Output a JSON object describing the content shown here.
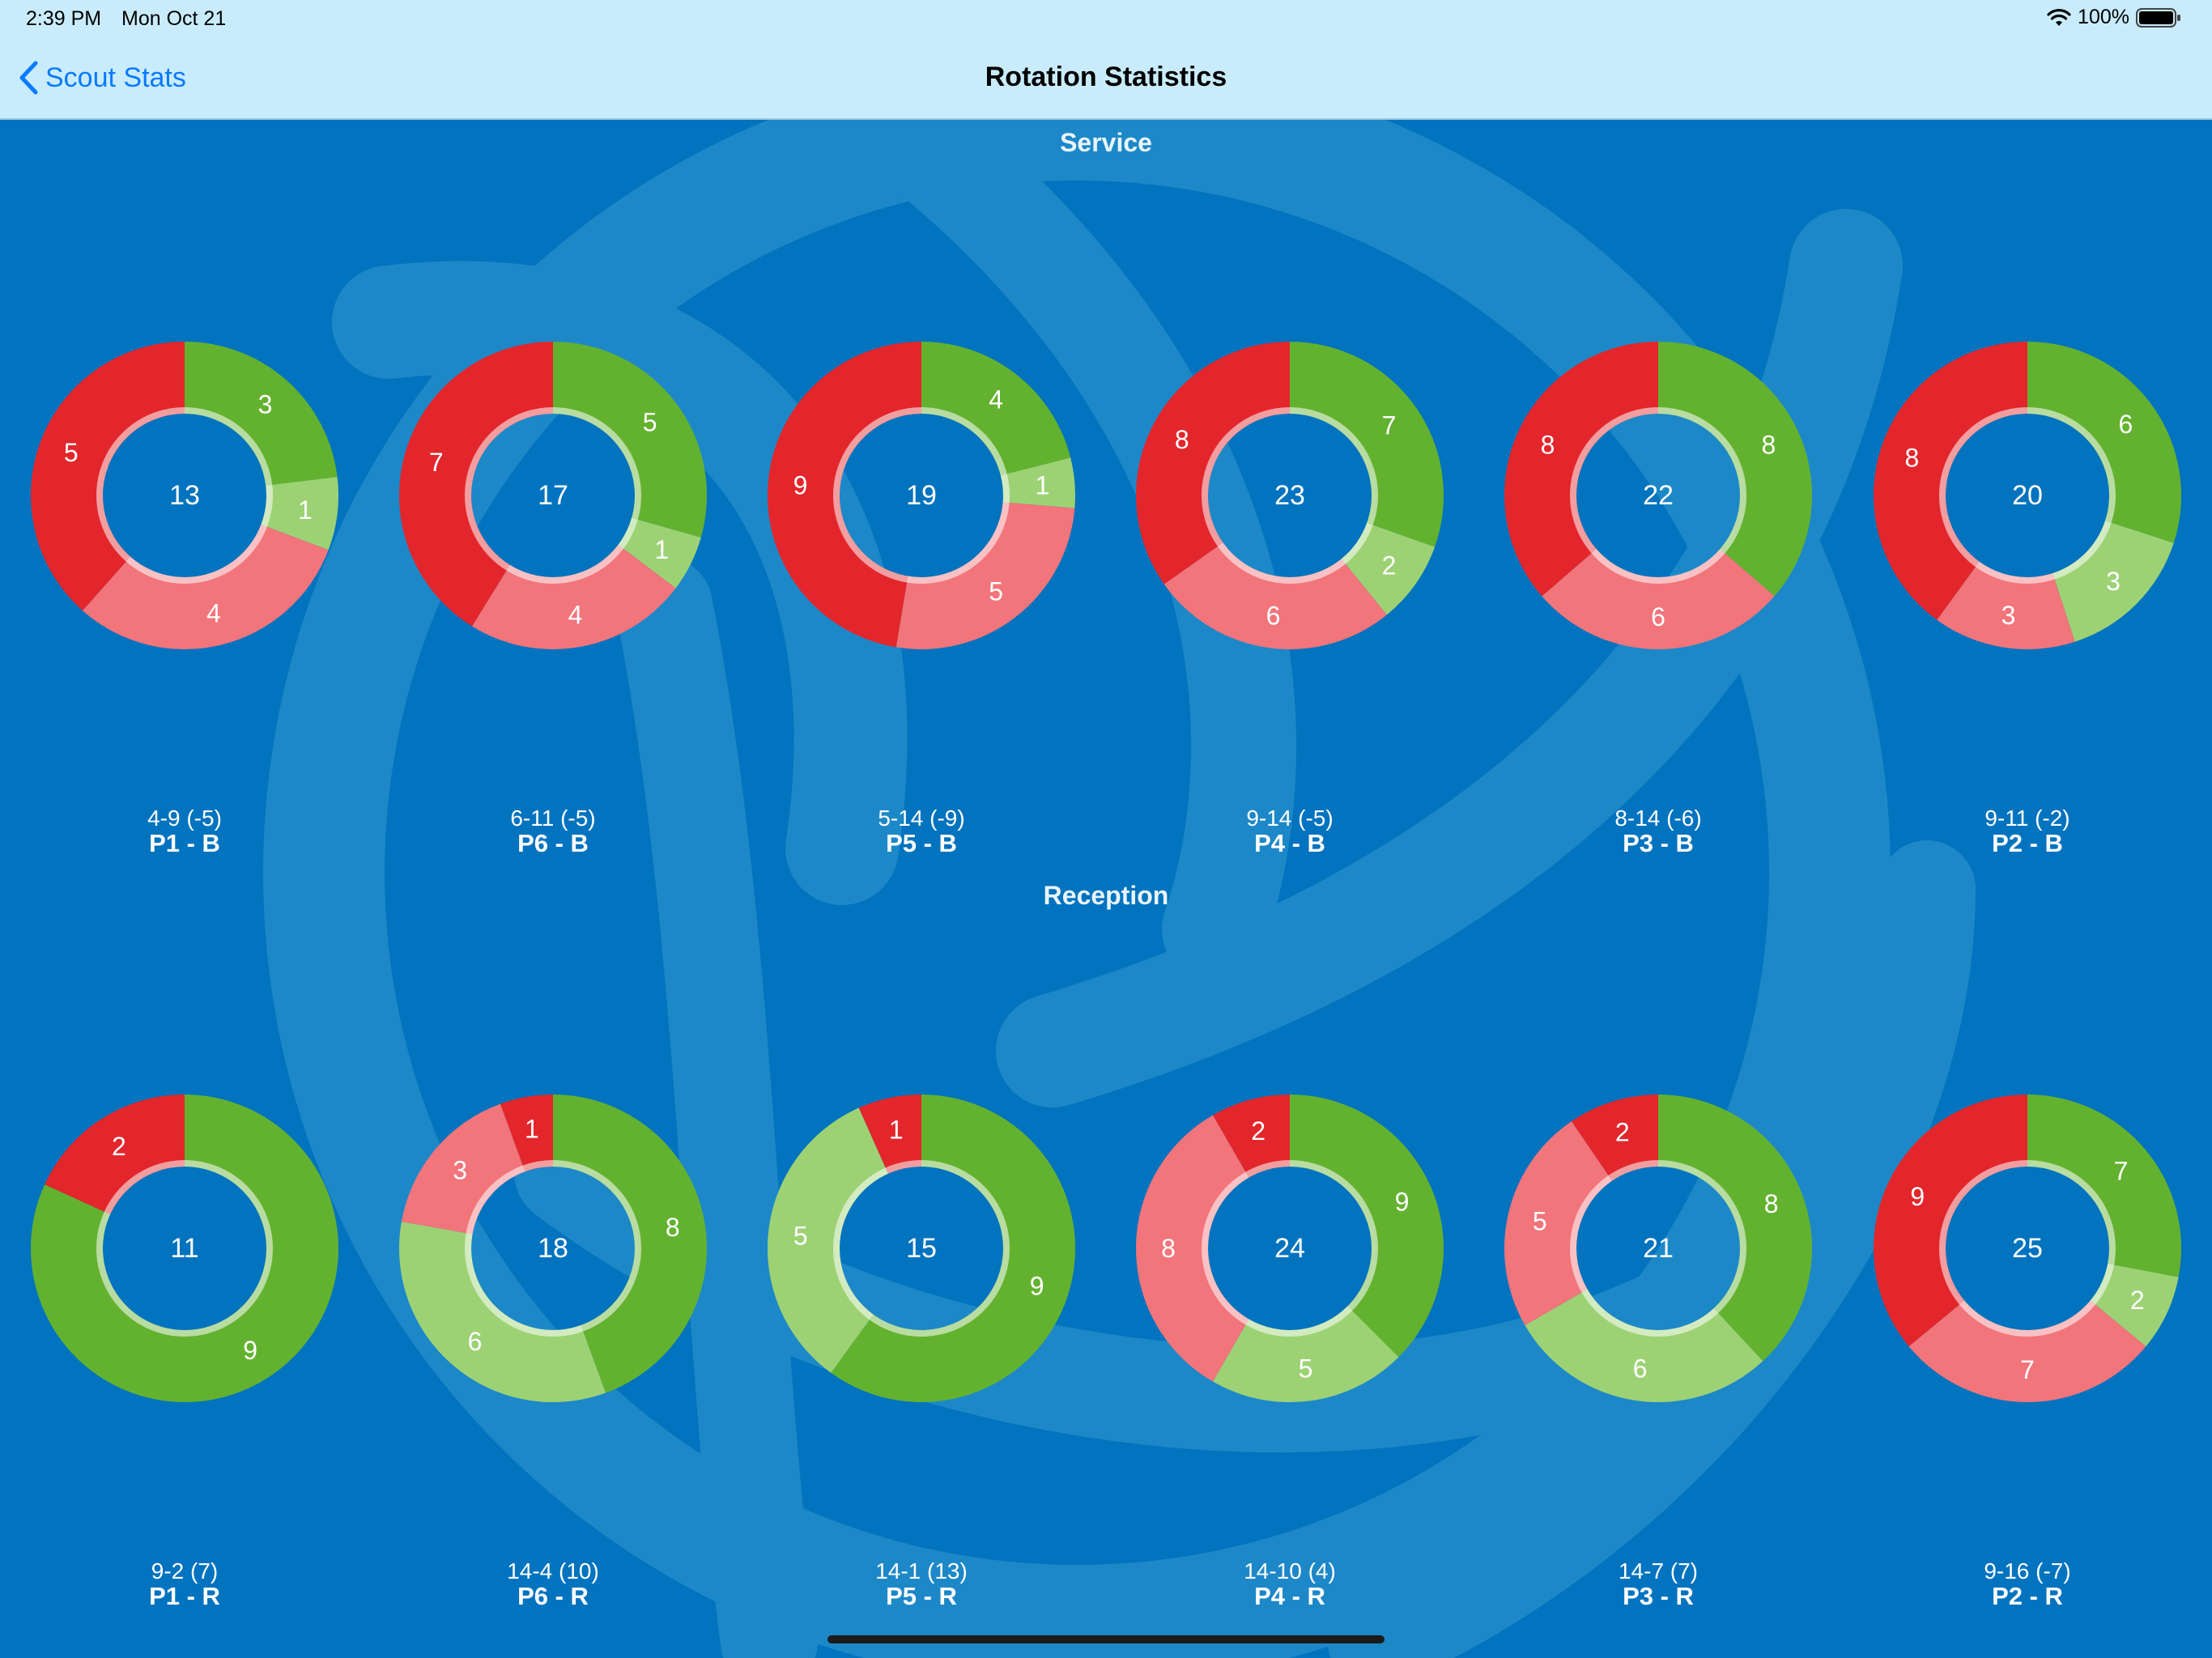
{
  "status_bar": {
    "time": "2:39 PM",
    "date": "Mon Oct 21",
    "battery": "100%"
  },
  "nav": {
    "back_label": "Scout Stats",
    "title": "Rotation Statistics"
  },
  "sections": [
    {
      "title": "Service",
      "rotations": [
        {
          "total": "13",
          "score": "4-9 (-5)",
          "position": "P1 - B",
          "slices": [
            {
              "value": 3,
              "color": "#63b22f"
            },
            {
              "value": 1,
              "color": "#9dd274"
            },
            {
              "value": 4,
              "color": "#f1757b"
            },
            {
              "value": 5,
              "color": "#e3262b"
            }
          ]
        },
        {
          "total": "17",
          "score": "6-11 (-5)",
          "position": "P6 - B",
          "slices": [
            {
              "value": 5,
              "color": "#63b22f"
            },
            {
              "value": 1,
              "color": "#9dd274"
            },
            {
              "value": 4,
              "color": "#f1757b"
            },
            {
              "value": 7,
              "color": "#e3262b"
            }
          ]
        },
        {
          "total": "19",
          "score": "5-14 (-9)",
          "position": "P5 - B",
          "slices": [
            {
              "value": 4,
              "color": "#63b22f"
            },
            {
              "value": 1,
              "color": "#9dd274"
            },
            {
              "value": 5,
              "color": "#f1757b"
            },
            {
              "value": 9,
              "color": "#e3262b"
            }
          ]
        },
        {
          "total": "23",
          "score": "9-14 (-5)",
          "position": "P4 - B",
          "slices": [
            {
              "value": 7,
              "color": "#63b22f"
            },
            {
              "value": 2,
              "color": "#9dd274"
            },
            {
              "value": 6,
              "color": "#f1757b"
            },
            {
              "value": 8,
              "color": "#e3262b"
            }
          ]
        },
        {
          "total": "22",
          "score": "8-14 (-6)",
          "position": "P3 - B",
          "slices": [
            {
              "value": 8,
              "color": "#63b22f"
            },
            {
              "value": 6,
              "color": "#f1757b"
            },
            {
              "value": 8,
              "color": "#e3262b"
            }
          ]
        },
        {
          "total": "20",
          "score": "9-11 (-2)",
          "position": "P2 - B",
          "slices": [
            {
              "value": 6,
              "color": "#63b22f"
            },
            {
              "value": 3,
              "color": "#9dd274"
            },
            {
              "value": 3,
              "color": "#f1757b"
            },
            {
              "value": 8,
              "color": "#e3262b"
            }
          ]
        }
      ]
    },
    {
      "title": "Reception",
      "rotations": [
        {
          "total": "11",
          "score": "9-2 (7)",
          "position": "P1 - R",
          "slices": [
            {
              "value": 9,
              "color": "#63b22f"
            },
            {
              "value": 2,
              "color": "#e3262b"
            }
          ]
        },
        {
          "total": "18",
          "score": "14-4 (10)",
          "position": "P6 - R",
          "slices": [
            {
              "value": 8,
              "color": "#63b22f"
            },
            {
              "value": 6,
              "color": "#9dd274"
            },
            {
              "value": 3,
              "color": "#f1757b"
            },
            {
              "value": 1,
              "color": "#e3262b"
            }
          ]
        },
        {
          "total": "15",
          "score": "14-1 (13)",
          "position": "P5 - R",
          "slices": [
            {
              "value": 9,
              "color": "#63b22f"
            },
            {
              "value": 5,
              "color": "#9dd274"
            },
            {
              "value": 1,
              "color": "#e3262b"
            }
          ]
        },
        {
          "total": "24",
          "score": "14-10 (4)",
          "position": "P4 - R",
          "slices": [
            {
              "value": 9,
              "color": "#63b22f"
            },
            {
              "value": 5,
              "color": "#9dd274"
            },
            {
              "value": 8,
              "color": "#f1757b"
            },
            {
              "value": 2,
              "color": "#e3262b"
            }
          ]
        },
        {
          "total": "21",
          "score": "14-7 (7)",
          "position": "P3 - R",
          "slices": [
            {
              "value": 8,
              "color": "#63b22f"
            },
            {
              "value": 6,
              "color": "#9dd274"
            },
            {
              "value": 5,
              "color": "#f1757b"
            },
            {
              "value": 2,
              "color": "#e3262b"
            }
          ]
        },
        {
          "total": "25",
          "score": "9-16 (-7)",
          "position": "P2 - R",
          "slices": [
            {
              "value": 7,
              "color": "#63b22f"
            },
            {
              "value": 2,
              "color": "#9dd274"
            },
            {
              "value": 7,
              "color": "#f1757b"
            },
            {
              "value": 9,
              "color": "#e3262b"
            }
          ]
        }
      ]
    }
  ]
}
